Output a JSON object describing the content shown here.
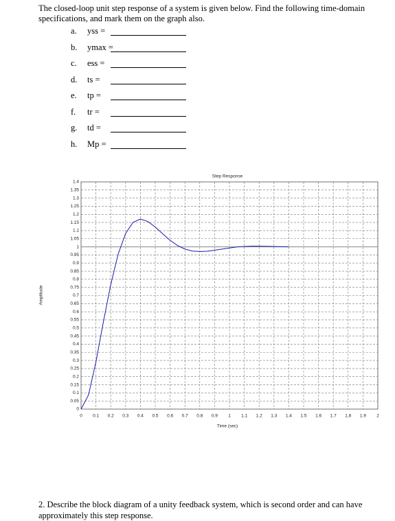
{
  "header": {
    "text": "The closed-loop unit step response of a system is given below. Find the following time-domain specifications, and mark them on the graph also."
  },
  "questions": [
    {
      "letter": "a.",
      "text": "yss ="
    },
    {
      "letter": "b.",
      "text": "ymax ="
    },
    {
      "letter": "c.",
      "text": "ess ="
    },
    {
      "letter": "d.",
      "text": "ts ="
    },
    {
      "letter": "e.",
      "text": "tp ="
    },
    {
      "letter": "f.",
      "text": "tr ="
    },
    {
      "letter": "g.",
      "text": "td ="
    },
    {
      "letter": "h.",
      "text": "Mp ="
    }
  ],
  "chart_data": {
    "type": "line",
    "title": "Step Response",
    "x_label": "Time (sec)",
    "y_label": "Amplitude",
    "x": [
      0,
      0.05,
      0.1,
      0.15,
      0.2,
      0.25,
      0.3,
      0.35,
      0.4,
      0.45,
      0.5,
      0.55,
      0.6,
      0.65,
      0.7,
      0.75,
      0.8,
      0.85,
      0.9,
      0.95,
      1,
      1.05,
      1.1,
      1.15,
      1.2,
      1.25,
      1.3,
      1.35,
      1.4
    ],
    "series": [
      {
        "color": "#1a1aa8",
        "values": [
          0,
          0.087,
          0.29,
          0.535,
          0.767,
          0.955,
          1.082,
          1.151,
          1.171,
          1.156,
          1.122,
          1.08,
          1.04,
          1.008,
          0.986,
          0.974,
          0.971,
          0.973,
          0.979,
          0.986,
          0.993,
          0.999,
          1.002,
          1.004,
          1.004,
          1.003,
          1.002,
          1.001,
          1
        ]
      }
    ],
    "reference_line": 1,
    "xlim": [
      0,
      2
    ],
    "xticks": [
      0,
      0.1,
      0.2,
      0.3,
      0.4,
      0.5,
      0.6,
      0.7,
      0.8,
      0.9,
      1,
      1.1,
      1.2,
      1.3,
      1.4,
      1.5,
      1.6,
      1.7,
      1.8,
      1.9,
      2
    ],
    "ylim": [
      0,
      1.4
    ],
    "yticks": [
      0,
      0.05,
      0.1,
      0.15,
      0.2,
      0.25,
      0.3,
      0.35,
      0.4,
      0.45,
      0.5,
      0.55,
      0.6,
      0.65,
      0.7,
      0.75,
      0.8,
      0.85,
      0.9,
      0.95,
      1,
      1.05,
      1.1,
      1.15,
      1.2,
      1.25,
      1.3,
      1.35,
      1.4
    ],
    "grid": true
  },
  "footer": {
    "text": "2. Describe the block diagram of a unity feedback system, which is second order and can have approximately this step response."
  }
}
